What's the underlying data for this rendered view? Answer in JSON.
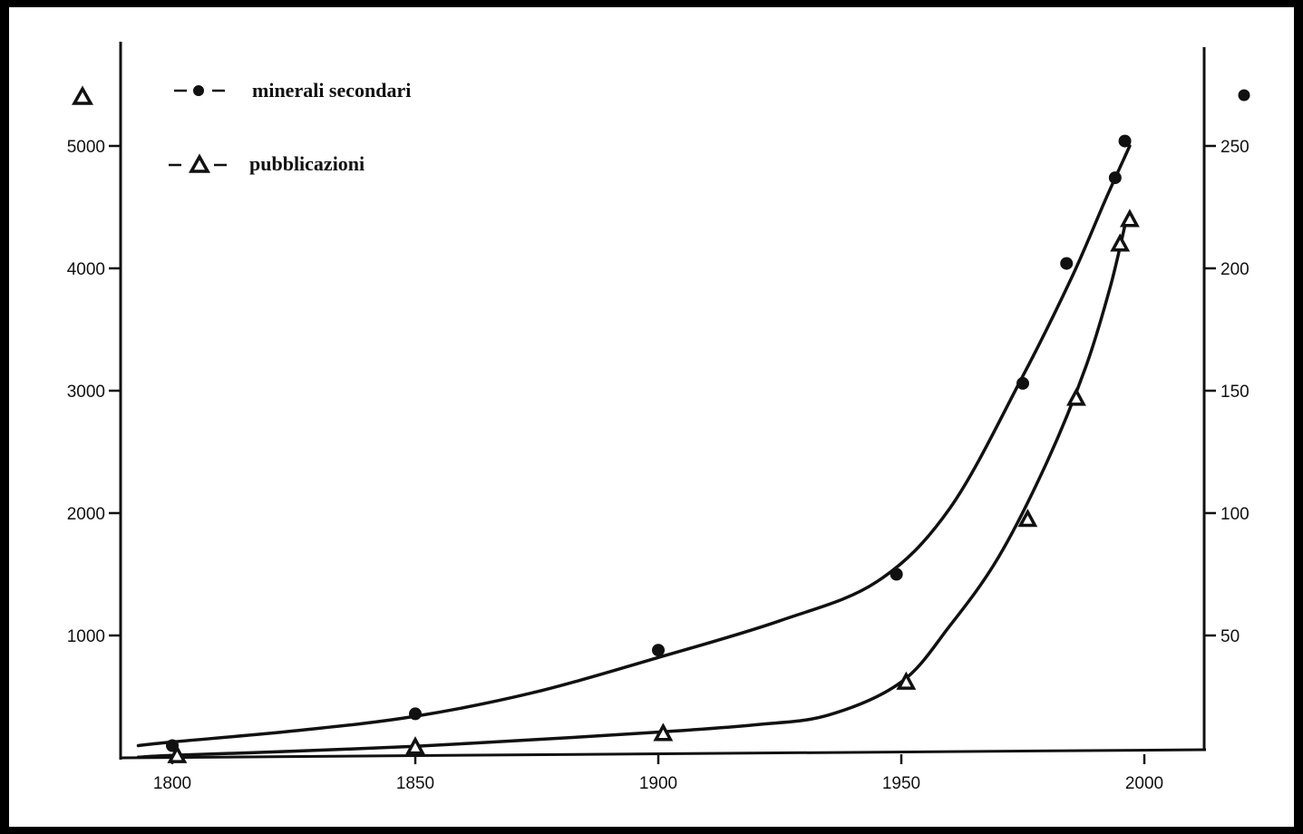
{
  "chart_data": {
    "type": "line",
    "title": "",
    "xlabel": "",
    "x_ticks": [
      "1800",
      "1850",
      "1900",
      "1950",
      "2000"
    ],
    "xlim": [
      1790,
      2010
    ],
    "y_left": {
      "ticks": [
        "1000",
        "2000",
        "3000",
        "4000",
        "5000"
      ],
      "ylim": [
        0,
        5500
      ],
      "marker": "triangle"
    },
    "y_right": {
      "ticks": [
        "50",
        "100",
        "150",
        "200",
        "250"
      ],
      "ylim": [
        0,
        265
      ],
      "marker": "circle"
    },
    "legend_placement": "top-left",
    "grid": false,
    "series": [
      {
        "name": "minerali secondari",
        "marker": "circle",
        "axis": "right",
        "points": [
          [
            1800,
            5
          ],
          [
            1850,
            18
          ],
          [
            1900,
            44
          ],
          [
            1949,
            75
          ],
          [
            1975,
            153
          ],
          [
            1984,
            202
          ],
          [
            1994,
            237
          ],
          [
            1996,
            252
          ]
        ],
        "curve": [
          [
            1793,
            5
          ],
          [
            1800,
            6.5
          ],
          [
            1825,
            11
          ],
          [
            1850,
            17
          ],
          [
            1875,
            27
          ],
          [
            1900,
            41
          ],
          [
            1925,
            56
          ],
          [
            1945,
            72
          ],
          [
            1960,
            102
          ],
          [
            1975,
            156
          ],
          [
            1985,
            196
          ],
          [
            1992,
            228
          ],
          [
            1997,
            250
          ]
        ]
      },
      {
        "name": "pubblicazioni",
        "marker": "triangle",
        "axis": "left",
        "points": [
          [
            1801,
            20
          ],
          [
            1850,
            90
          ],
          [
            1901,
            200
          ],
          [
            1951,
            620
          ],
          [
            1976,
            1950
          ],
          [
            1986,
            2940
          ],
          [
            1995,
            4200
          ],
          [
            1997,
            4400
          ]
        ],
        "curve": [
          [
            1793,
            5
          ],
          [
            1800,
            20
          ],
          [
            1825,
            55
          ],
          [
            1850,
            95
          ],
          [
            1875,
            150
          ],
          [
            1900,
            210
          ],
          [
            1920,
            270
          ],
          [
            1935,
            350
          ],
          [
            1950,
            620
          ],
          [
            1960,
            1080
          ],
          [
            1970,
            1640
          ],
          [
            1980,
            2420
          ],
          [
            1988,
            3200
          ],
          [
            1993,
            3850
          ],
          [
            1996,
            4350
          ]
        ]
      }
    ]
  }
}
